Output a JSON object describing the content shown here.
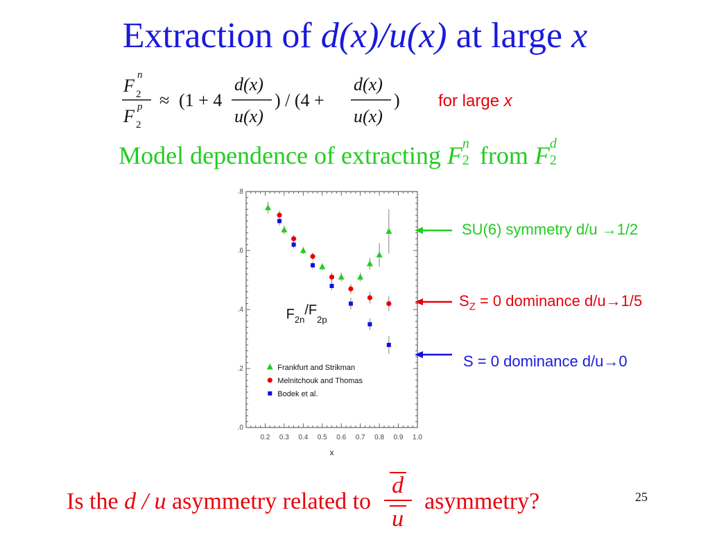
{
  "slide": {
    "title_prefix": "Extraction of",
    "title_math": "d(x)/u(x)",
    "title_mid": "at large",
    "title_var": "x",
    "formula": {
      "lhs_num": "F",
      "lhs_num_sub": "2",
      "lhs_num_sup": "n",
      "lhs_den": "F",
      "lhs_den_sub": "2",
      "lhs_den_sup": "p",
      "approx": "≈",
      "open1": "(1 + 4",
      "frac_num": "d(x)",
      "frac_den": "u(x)",
      "mid": ") / (4 +",
      "close": ")"
    },
    "for_large_text": "for large",
    "for_large_var": "x",
    "model_text_1": "Model dependence of extracting",
    "model_F_n": "F",
    "model_sub_n": "2",
    "model_sup_n": "n",
    "model_from": "from",
    "model_F_d": "F",
    "model_sub_d": "2",
    "model_sup_d": "d",
    "annotations": {
      "su6": "SU(6) symmetry  d/u →1/2",
      "sz_prefix": "S",
      "sz_sub": "Z",
      "sz_rest": " = 0 dominance  d/u→1/5",
      "s0": "S = 0 dominance   d/u→0"
    },
    "question_prefix": "Is the",
    "question_math": "d / u",
    "question_mid": "asymmetry related to",
    "question_frac_num": "d",
    "question_frac_den": "u",
    "question_end": "asymmetry?",
    "page_number": "25"
  },
  "colors": {
    "title": "#1a1adc",
    "red": "#e8000a",
    "green": "#22cc22",
    "blue": "#1a1adc",
    "series_green": "#22cc22",
    "series_red": "#e8000a",
    "series_blue": "#1010dd"
  },
  "chart_data": {
    "type": "scatter",
    "title": "",
    "inner_label_F": "F",
    "inner_label_sub1": "2n",
    "inner_label_slash": "/F",
    "inner_label_sub2": "2p",
    "xlabel": "x",
    "ylabel": "",
    "xlim": [
      0.1,
      1.0
    ],
    "ylim": [
      0.0,
      0.8
    ],
    "x_ticks": [
      "0.2",
      "0.3",
      "0.4",
      "0.5",
      "0.6",
      "0.7",
      "0.8",
      "0.9",
      "1.0"
    ],
    "y_ticks": [
      ".0",
      ".2",
      ".4",
      ".6",
      ".8"
    ],
    "legend_position": "lower-left",
    "series": [
      {
        "name": "Frankfurt and Strikman",
        "marker": "triangle",
        "color": "#22cc22",
        "points": [
          {
            "x": 0.215,
            "y": 0.745,
            "err": 0.02
          },
          {
            "x": 0.3,
            "y": 0.67,
            "err": 0.015
          },
          {
            "x": 0.4,
            "y": 0.6,
            "err": 0.012
          },
          {
            "x": 0.5,
            "y": 0.545,
            "err": 0.012
          },
          {
            "x": 0.6,
            "y": 0.51,
            "err": 0.015
          },
          {
            "x": 0.7,
            "y": 0.51,
            "err": 0.015
          },
          {
            "x": 0.75,
            "y": 0.555,
            "err": 0.02
          },
          {
            "x": 0.8,
            "y": 0.585,
            "err": 0.04
          },
          {
            "x": 0.85,
            "y": 0.665,
            "err": 0.075
          }
        ]
      },
      {
        "name": "Melnitchouk  and  Thomas",
        "marker": "circle",
        "color": "#e8000a",
        "points": [
          {
            "x": 0.275,
            "y": 0.72,
            "err": 0.015
          },
          {
            "x": 0.35,
            "y": 0.64,
            "err": 0.013
          },
          {
            "x": 0.45,
            "y": 0.58,
            "err": 0.013
          },
          {
            "x": 0.55,
            "y": 0.51,
            "err": 0.015
          },
          {
            "x": 0.65,
            "y": 0.47,
            "err": 0.017
          },
          {
            "x": 0.75,
            "y": 0.44,
            "err": 0.02
          },
          {
            "x": 0.85,
            "y": 0.42,
            "err": 0.025
          }
        ]
      },
      {
        "name": "Bodek  et  al.",
        "marker": "square",
        "color": "#1010dd",
        "points": [
          {
            "x": 0.275,
            "y": 0.7,
            "err": 0.015
          },
          {
            "x": 0.35,
            "y": 0.62,
            "err": 0.013
          },
          {
            "x": 0.45,
            "y": 0.55,
            "err": 0.013
          },
          {
            "x": 0.55,
            "y": 0.48,
            "err": 0.015
          },
          {
            "x": 0.65,
            "y": 0.42,
            "err": 0.02
          },
          {
            "x": 0.75,
            "y": 0.35,
            "err": 0.02
          },
          {
            "x": 0.85,
            "y": 0.28,
            "err": 0.03
          }
        ]
      }
    ]
  }
}
